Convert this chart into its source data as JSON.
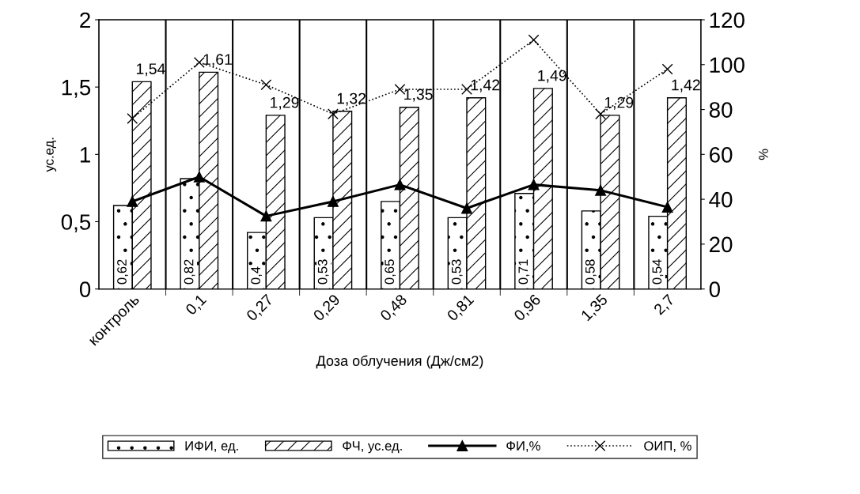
{
  "chart_data": {
    "type": "bar",
    "xlabel": "Доза облучения (Дж/см2)",
    "ylabel": "ус.ед.",
    "y2label": "%",
    "categories": [
      "контроль",
      "0,1",
      "0,27",
      "0,29",
      "0,48",
      "0,81",
      "0,96",
      "1,35",
      "2,7"
    ],
    "series": [
      {
        "name": "ИФИ, ед.",
        "color": "#000000",
        "values": [
          0.62,
          0.82,
          0.42,
          0.53,
          0.65,
          0.53,
          0.71,
          0.58,
          0.54
        ],
        "value_labels": [
          "0,62",
          "0,82",
          "0,4",
          "0,53",
          "0,65",
          "0,53",
          "0,71",
          "0,58",
          "0,54"
        ]
      },
      {
        "name": "ФЧ, ус.ед.",
        "color": "#000000",
        "values": [
          1.54,
          1.61,
          1.29,
          1.32,
          1.35,
          1.42,
          1.49,
          1.29,
          1.42
        ],
        "value_labels": [
          "1,54",
          "1,61",
          "1,29",
          "1,32",
          "1,35",
          "1,42",
          "1,49",
          "1,29",
          "1,42"
        ]
      },
      {
        "name": "ФИ,%",
        "type": "line",
        "axis": "y2",
        "color": "#000000",
        "marker": "triangle",
        "line_style": "solid",
        "values": [
          39,
          50,
          32.5,
          39,
          46.5,
          36,
          46.5,
          44,
          36.5
        ]
      },
      {
        "name": "ОИП, %",
        "type": "line",
        "axis": "y2",
        "color": "#000000",
        "marker": "cross",
        "line_style": "dotted",
        "values": [
          76,
          101,
          91,
          78,
          89,
          89,
          111,
          78,
          98
        ]
      }
    ],
    "ylim": [
      0,
      2
    ],
    "yticks": [
      0,
      {
        "value": 0.5,
        "label": "0,5"
      },
      1,
      {
        "value": 1.5,
        "label": "1,5"
      },
      2
    ],
    "y2lim": [
      0,
      120
    ],
    "y2ticks": [
      0,
      20,
      40,
      60,
      80,
      100,
      120
    ],
    "grid": "x",
    "legend": "bottom"
  }
}
